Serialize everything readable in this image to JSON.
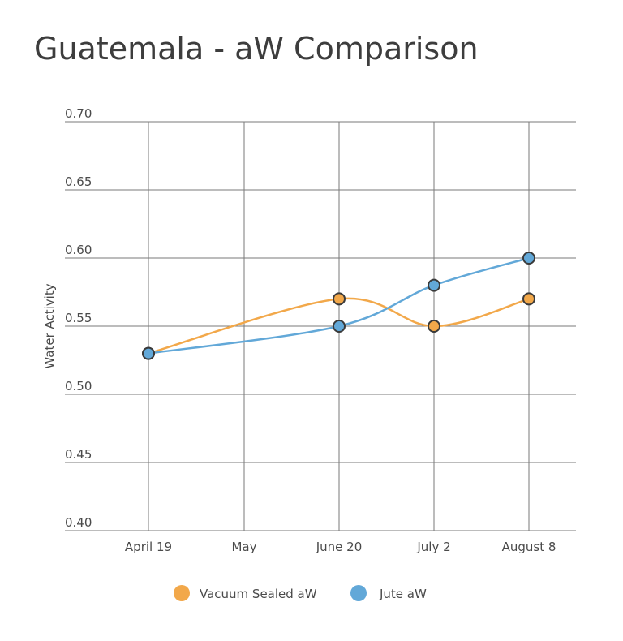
{
  "chart_data": {
    "type": "line",
    "title": "Guatemala - aW Comparison",
    "xlabel": "",
    "ylabel": "Water Activity",
    "categories": [
      "April 19",
      "May",
      "June 20",
      "July 2",
      "August 8"
    ],
    "ylim": [
      0.4,
      0.7
    ],
    "yticks": [
      "0.40",
      "0.45",
      "0.50",
      "0.55",
      "0.60",
      "0.65",
      "0.70"
    ],
    "grid": true,
    "legend_position": "bottom",
    "series": [
      {
        "name": "Vacuum Sealed aW",
        "color": "#f2a84a",
        "points": [
          {
            "category": "April 19",
            "value": 0.53
          },
          {
            "category": "June 20",
            "value": 0.57
          },
          {
            "category": "July 2",
            "value": 0.55
          },
          {
            "category": "August 8",
            "value": 0.57
          }
        ]
      },
      {
        "name": "Jute aW",
        "color": "#62a8d8",
        "points": [
          {
            "category": "April 19",
            "value": 0.53
          },
          {
            "category": "June 20",
            "value": 0.55
          },
          {
            "category": "July 2",
            "value": 0.58
          },
          {
            "category": "August 8",
            "value": 0.6
          }
        ]
      }
    ]
  }
}
